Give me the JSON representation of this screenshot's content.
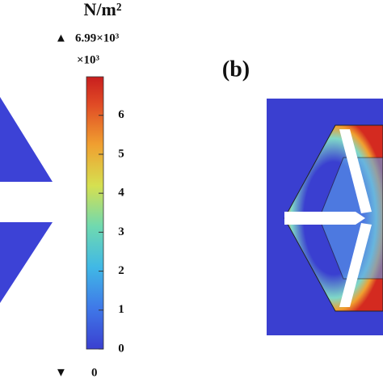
{
  "chart_data": {
    "type": "colorbar",
    "title": "N/m²",
    "max_label": "6.99×10³",
    "scale_label": "×10³",
    "min_label": "0",
    "panel_label": "(b)",
    "ylim": [
      0,
      6.99
    ],
    "yticks": [
      0,
      1,
      2,
      3,
      4,
      5,
      6
    ]
  }
}
